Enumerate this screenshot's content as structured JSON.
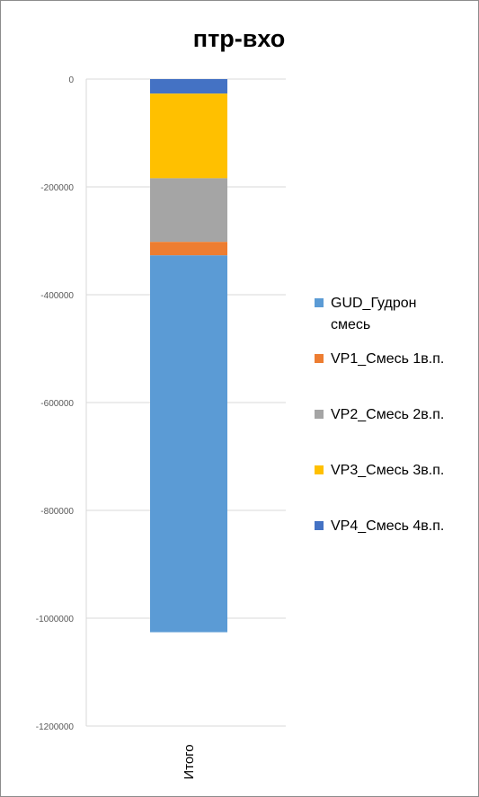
{
  "chart_data": {
    "type": "bar",
    "stacked": true,
    "title": "птр-вхо",
    "categories": [
      "Итого"
    ],
    "yticks": [
      "0",
      "-200000",
      "-400000",
      "-600000",
      "-800000",
      "-1000000",
      "-1200000"
    ],
    "ylim": [
      -1200000,
      0
    ],
    "grid": true,
    "legend_position": "right",
    "series": [
      {
        "name": "VP4_Смесь 4в.п.",
        "values": [
          -27000
        ],
        "color": "#4472C4"
      },
      {
        "name": "VP3_Смесь 3в.п.",
        "values": [
          -157000
        ],
        "color": "#FFC000"
      },
      {
        "name": "VP2_Смесь 2в.п.",
        "values": [
          -118000
        ],
        "color": "#A5A5A5"
      },
      {
        "name": "VP1_Смесь 1в.п.",
        "values": [
          -25000
        ],
        "color": "#ED7D31"
      },
      {
        "name": "GUD_Гудрон смесь",
        "values": [
          -699000
        ],
        "color": "#5B9BD5"
      }
    ],
    "legend": [
      {
        "lines": [
          "GUD_Гудрон",
          "смесь"
        ],
        "color": "#5B9BD5"
      },
      {
        "lines": [
          "VP1_Смесь 1в.п."
        ],
        "color": "#ED7D31"
      },
      {
        "lines": [
          "VP2_Смесь 2в.п."
        ],
        "color": "#A5A5A5"
      },
      {
        "lines": [
          "VP3_Смесь 3в.п."
        ],
        "color": "#FFC000"
      },
      {
        "lines": [
          "VP4_Смесь 4в.п."
        ],
        "color": "#4472C4"
      }
    ]
  }
}
